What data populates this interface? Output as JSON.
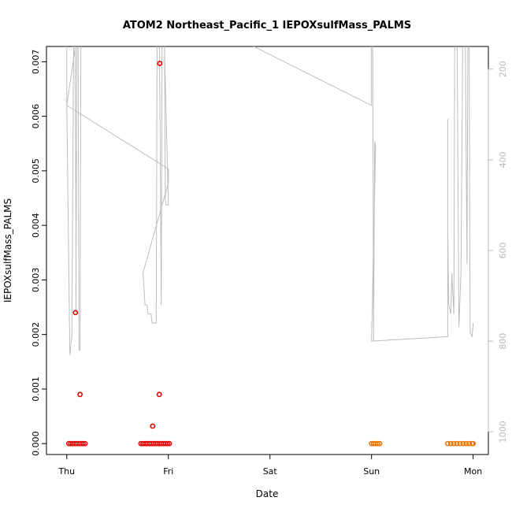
{
  "chart_data": {
    "type": "scatter",
    "title": "ATOM2 Northeast_Pacific_1 IEPOXsulfMass_PALMS",
    "xlabel": "Date",
    "ylabel": "IEPOXsulfMass_PALMS",
    "x_ticks": [
      {
        "day": 0,
        "label": "Thu"
      },
      {
        "day": 1,
        "label": "Fri"
      },
      {
        "day": 2,
        "label": "Sat"
      },
      {
        "day": 3,
        "label": "Sun"
      },
      {
        "day": 4,
        "label": "Mon"
      }
    ],
    "xlim": [
      -0.2,
      4.15
    ],
    "ylim": [
      -0.0002,
      0.00728
    ],
    "y_ticks": [
      0.0,
      0.001,
      0.002,
      0.003,
      0.004,
      0.005,
      0.006,
      0.007
    ],
    "y_tick_labels": [
      "0.000",
      "0.001",
      "0.002",
      "0.003",
      "0.004",
      "0.005",
      "0.006",
      "0.007"
    ],
    "y2_ticks": [
      200,
      400,
      600,
      800,
      1000
    ],
    "y2_tick_labels": [
      "200",
      "400",
      "600",
      "800",
      "1000"
    ],
    "y2lim": [
      1050,
      150
    ],
    "colors": {
      "flight1": "#ee0000",
      "flight2": "#ee7700",
      "altitude": "#bdbdbd",
      "axis": "#000000",
      "axis_right": "#b8b8b8"
    },
    "series": [
      {
        "color_key": "flight1",
        "points": [
          [
            0.02,
            0
          ],
          [
            0.04,
            0
          ],
          [
            0.06,
            0
          ],
          [
            0.08,
            0
          ],
          [
            0.1,
            0
          ],
          [
            0.12,
            0
          ],
          [
            0.14,
            0
          ],
          [
            0.16,
            0
          ],
          [
            0.18,
            0
          ],
          [
            0.085,
            0.0024
          ],
          [
            0.13,
            0.0009
          ],
          [
            0.73,
            0
          ],
          [
            0.75,
            0
          ],
          [
            0.77,
            0
          ],
          [
            0.79,
            0
          ],
          [
            0.81,
            0
          ],
          [
            0.83,
            0
          ],
          [
            0.85,
            0
          ],
          [
            0.87,
            0
          ],
          [
            0.89,
            0
          ],
          [
            0.91,
            0
          ],
          [
            0.93,
            0
          ],
          [
            0.95,
            0
          ],
          [
            0.97,
            0
          ],
          [
            0.99,
            0
          ],
          [
            1.01,
            0
          ],
          [
            0.845,
            0.00032
          ],
          [
            0.91,
            0.0009
          ],
          [
            0.915,
            0.00697
          ]
        ]
      },
      {
        "color_key": "flight2",
        "points": [
          [
            3.0,
            0
          ],
          [
            3.02,
            0
          ],
          [
            3.04,
            0
          ],
          [
            3.06,
            0
          ],
          [
            3.08,
            0
          ],
          [
            3.75,
            0
          ],
          [
            3.78,
            0
          ],
          [
            3.81,
            0
          ],
          [
            3.84,
            0
          ],
          [
            3.87,
            0
          ],
          [
            3.9,
            0
          ],
          [
            3.93,
            0
          ],
          [
            3.96,
            0
          ],
          [
            3.99,
            0
          ],
          [
            4.0,
            0
          ]
        ]
      }
    ],
    "altitude_trace": [
      [
        0.0,
        50
      ],
      [
        0.0,
        280
      ],
      [
        0.03,
        830
      ],
      [
        0.05,
        790
      ],
      [
        0.07,
        50
      ],
      [
        0.08,
        50
      ],
      [
        0.09,
        550
      ],
      [
        0.09,
        740
      ],
      [
        0.1,
        80
      ],
      [
        0.11,
        50
      ],
      [
        0.12,
        820
      ],
      [
        0.13,
        820
      ],
      [
        0.14,
        50
      ],
      [
        0.15,
        50
      ],
      [
        0.0,
        280
      ],
      [
        1.0,
        420
      ],
      [
        1.0,
        450
      ],
      [
        0.75,
        650
      ],
      [
        0.76,
        680
      ],
      [
        0.77,
        720
      ],
      [
        0.79,
        720
      ],
      [
        0.8,
        740
      ],
      [
        0.83,
        740
      ],
      [
        0.84,
        760
      ],
      [
        0.88,
        760
      ],
      [
        0.89,
        50
      ],
      [
        0.91,
        50
      ],
      [
        0.93,
        720
      ],
      [
        0.94,
        50
      ],
      [
        0.96,
        50
      ],
      [
        0.97,
        490
      ],
      [
        0.98,
        500
      ],
      [
        1.0,
        500
      ],
      [
        0.95,
        50
      ],
      [
        3.0,
        280
      ],
      [
        3.0,
        50
      ],
      [
        3.01,
        50
      ],
      [
        3.02,
        800
      ],
      [
        3.03,
        360
      ],
      [
        3.04,
        370
      ],
      [
        3.0,
        800
      ],
      [
        3.75,
        790
      ],
      [
        3.75,
        310
      ],
      [
        3.75,
        560
      ],
      [
        3.76,
        720
      ],
      [
        3.78,
        740
      ],
      [
        3.79,
        650
      ],
      [
        3.81,
        740
      ],
      [
        3.82,
        50
      ],
      [
        3.84,
        50
      ],
      [
        3.86,
        770
      ],
      [
        3.88,
        650
      ],
      [
        3.9,
        50
      ],
      [
        3.92,
        50
      ],
      [
        3.94,
        630
      ],
      [
        3.95,
        50
      ],
      [
        3.96,
        50
      ],
      [
        3.97,
        780
      ],
      [
        3.99,
        790
      ],
      [
        4.0,
        760
      ]
    ]
  }
}
